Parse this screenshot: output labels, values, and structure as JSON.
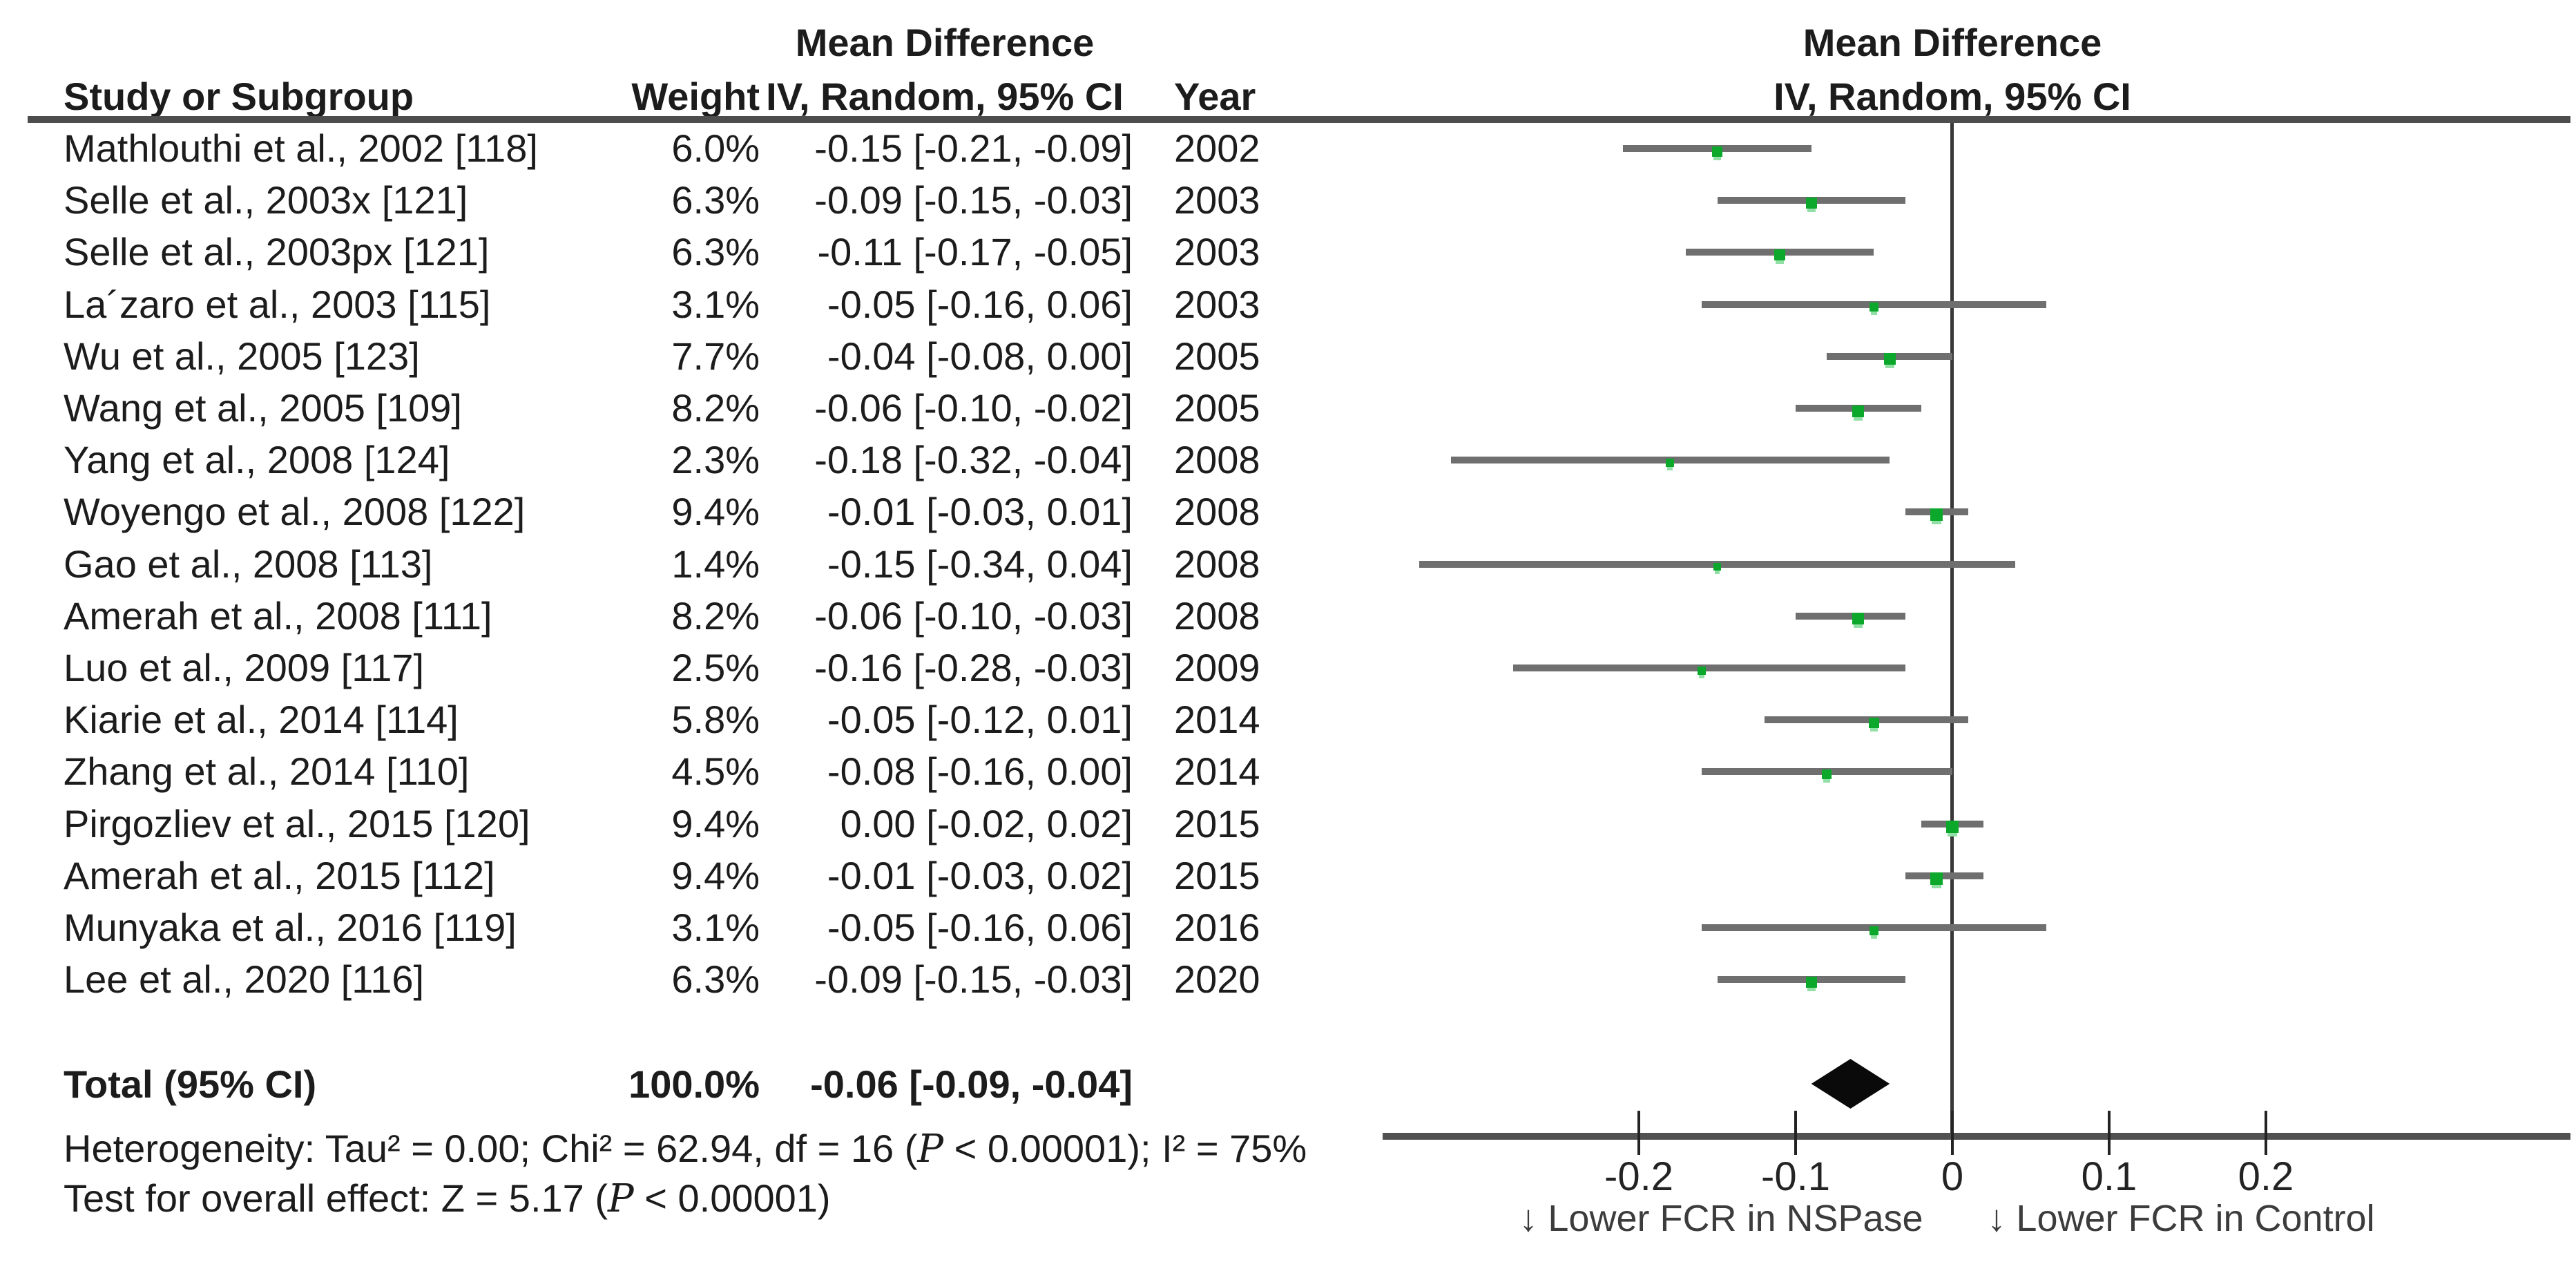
{
  "colors": {
    "marker_green": "#0ca82c",
    "bar_gray": "#6f6f6f",
    "rule_gray": "#4d4d4d",
    "diamond_black": "#0a0a0a",
    "text": "#1c1c1c"
  },
  "header": {
    "effect_title_left": "Mean Difference",
    "effect_subtitle_left": "IV, Random, 95% CI",
    "col_study": "Study or Subgroup",
    "col_weight": "Weight",
    "col_year": "Year",
    "effect_title_right": "Mean Difference",
    "effect_subtitle_right": "IV, Random, 95% CI"
  },
  "chart_data": {
    "type": "forest",
    "effect_measure": "Mean Difference, IV, Random, 95% CI",
    "xlabel_ticks": [
      "-0.2",
      "-0.1",
      "0",
      "0.1",
      "0.2"
    ],
    "ticks": [
      -0.2,
      -0.1,
      0,
      0.1,
      0.2
    ],
    "xlim": [
      -0.363,
      0.394
    ],
    "zero_reference": 0,
    "studies": [
      {
        "name": "Mathlouthi et al., 2002 [118]",
        "weight": "6.0%",
        "weight_num": 6.0,
        "md": -0.15,
        "lo": -0.21,
        "hi": -0.09,
        "ci_text": "-0.15 [-0.21, -0.09]",
        "year": "2002"
      },
      {
        "name": "Selle et al., 2003x [121]",
        "weight": "6.3%",
        "weight_num": 6.3,
        "md": -0.09,
        "lo": -0.15,
        "hi": -0.03,
        "ci_text": "-0.09 [-0.15, -0.03]",
        "year": "2003"
      },
      {
        "name": "Selle et al., 2003px [121]",
        "weight": "6.3%",
        "weight_num": 6.3,
        "md": -0.11,
        "lo": -0.17,
        "hi": -0.05,
        "ci_text": "-0.11 [-0.17, -0.05]",
        "year": "2003"
      },
      {
        "name": "La´zaro et al., 2003 [115]",
        "weight": "3.1%",
        "weight_num": 3.1,
        "md": -0.05,
        "lo": -0.16,
        "hi": 0.06,
        "ci_text": "-0.05 [-0.16, 0.06]",
        "year": "2003"
      },
      {
        "name": "Wu et al., 2005 [123]",
        "weight": "7.7%",
        "weight_num": 7.7,
        "md": -0.04,
        "lo": -0.08,
        "hi": 0.0,
        "ci_text": "-0.04 [-0.08, 0.00]",
        "year": "2005"
      },
      {
        "name": "Wang et al., 2005 [109]",
        "weight": "8.2%",
        "weight_num": 8.2,
        "md": -0.06,
        "lo": -0.1,
        "hi": -0.02,
        "ci_text": "-0.06 [-0.10, -0.02]",
        "year": "2005"
      },
      {
        "name": "Yang et al., 2008 [124]",
        "weight": "2.3%",
        "weight_num": 2.3,
        "md": -0.18,
        "lo": -0.32,
        "hi": -0.04,
        "ci_text": "-0.18 [-0.32, -0.04]",
        "year": "2008"
      },
      {
        "name": "Woyengo et al., 2008 [122]",
        "weight": "9.4%",
        "weight_num": 9.4,
        "md": -0.01,
        "lo": -0.03,
        "hi": 0.01,
        "ci_text": "-0.01 [-0.03, 0.01]",
        "year": "2008"
      },
      {
        "name": "Gao et al., 2008 [113]",
        "weight": "1.4%",
        "weight_num": 1.4,
        "md": -0.15,
        "lo": -0.34,
        "hi": 0.04,
        "ci_text": "-0.15 [-0.34, 0.04]",
        "year": "2008"
      },
      {
        "name": "Amerah et al., 2008 [111]",
        "weight": "8.2%",
        "weight_num": 8.2,
        "md": -0.06,
        "lo": -0.1,
        "hi": -0.03,
        "ci_text": "-0.06 [-0.10, -0.03]",
        "year": "2008"
      },
      {
        "name": "Luo et al., 2009 [117]",
        "weight": "2.5%",
        "weight_num": 2.5,
        "md": -0.16,
        "lo": -0.28,
        "hi": -0.03,
        "ci_text": "-0.16 [-0.28, -0.03]",
        "year": "2009"
      },
      {
        "name": "Kiarie et al., 2014 [114]",
        "weight": "5.8%",
        "weight_num": 5.8,
        "md": -0.05,
        "lo": -0.12,
        "hi": 0.01,
        "ci_text": "-0.05 [-0.12, 0.01]",
        "year": "2014"
      },
      {
        "name": "Zhang et al., 2014 [110]",
        "weight": "4.5%",
        "weight_num": 4.5,
        "md": -0.08,
        "lo": -0.16,
        "hi": 0.0,
        "ci_text": "-0.08 [-0.16, 0.00]",
        "year": "2014"
      },
      {
        "name": "Pirgozliev et al., 2015 [120]",
        "weight": "9.4%",
        "weight_num": 9.4,
        "md": 0.0,
        "lo": -0.02,
        "hi": 0.02,
        "ci_text": "0.00 [-0.02, 0.02]",
        "year": "2015"
      },
      {
        "name": "Amerah et al., 2015 [112]",
        "weight": "9.4%",
        "weight_num": 9.4,
        "md": -0.01,
        "lo": -0.03,
        "hi": 0.02,
        "ci_text": "-0.01 [-0.03, 0.02]",
        "year": "2015"
      },
      {
        "name": "Munyaka et al., 2016 [119]",
        "weight": "3.1%",
        "weight_num": 3.1,
        "md": -0.05,
        "lo": -0.16,
        "hi": 0.06,
        "ci_text": "-0.05 [-0.16, 0.06]",
        "year": "2016"
      },
      {
        "name": "Lee et al., 2020 [116]",
        "weight": "6.3%",
        "weight_num": 6.3,
        "md": -0.09,
        "lo": -0.15,
        "hi": -0.03,
        "ci_text": "-0.09 [-0.15, -0.03]",
        "year": "2020"
      }
    ],
    "total": {
      "label": "Total (95% CI)",
      "weight": "100.0%",
      "md": -0.06,
      "lo": -0.09,
      "hi": -0.04,
      "ci_text": "-0.06 [-0.09, -0.04]"
    },
    "heterogeneity": {
      "pre": "Heterogeneity: Tau² = 0.00; Chi² = 62.94, df = 16 (",
      "p": "P",
      "post": " < 0.00001); I² = 75%"
    },
    "overall_effect": {
      "pre": "Test for overall effect: Z = 5.17 (",
      "p": "P",
      "post": " < 0.00001)"
    },
    "direction_label_left": "↓ Lower FCR in NSPase",
    "direction_label_right": "↓ Lower FCR in Control"
  }
}
